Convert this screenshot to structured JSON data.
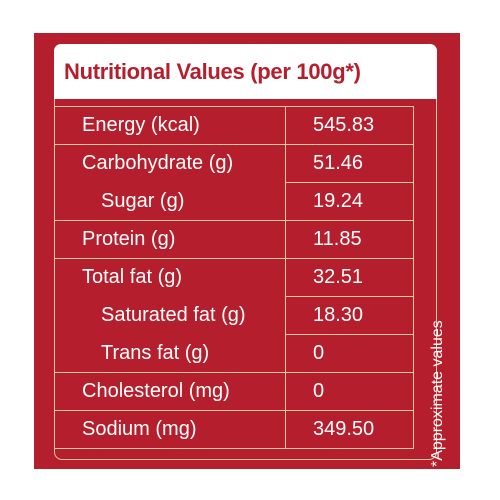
{
  "title": "Nutritional Values (per 100g*)",
  "rows": [
    {
      "name": "Energy (kcal)",
      "value": "545.83"
    },
    {
      "name": "Carbohydrate (g)",
      "value": "51.46"
    },
    {
      "name": "Sugar (g)",
      "value": "19.24"
    },
    {
      "name": "Protein (g)",
      "value": "11.85"
    },
    {
      "name": "Total fat (g)",
      "value": "32.51"
    },
    {
      "name": "Saturated fat (g)",
      "value": "18.30"
    },
    {
      "name": "Trans fat (g)",
      "value": "0"
    },
    {
      "name": "Cholesterol (mg)",
      "value": "0"
    },
    {
      "name": "Sodium (mg)",
      "value": "349.50"
    }
  ],
  "footnote": "*Approximate values",
  "colors": {
    "background": "#b51f2d",
    "border": "#f3c79c",
    "title_bg": "#ffffff",
    "text": "#ffffff"
  }
}
